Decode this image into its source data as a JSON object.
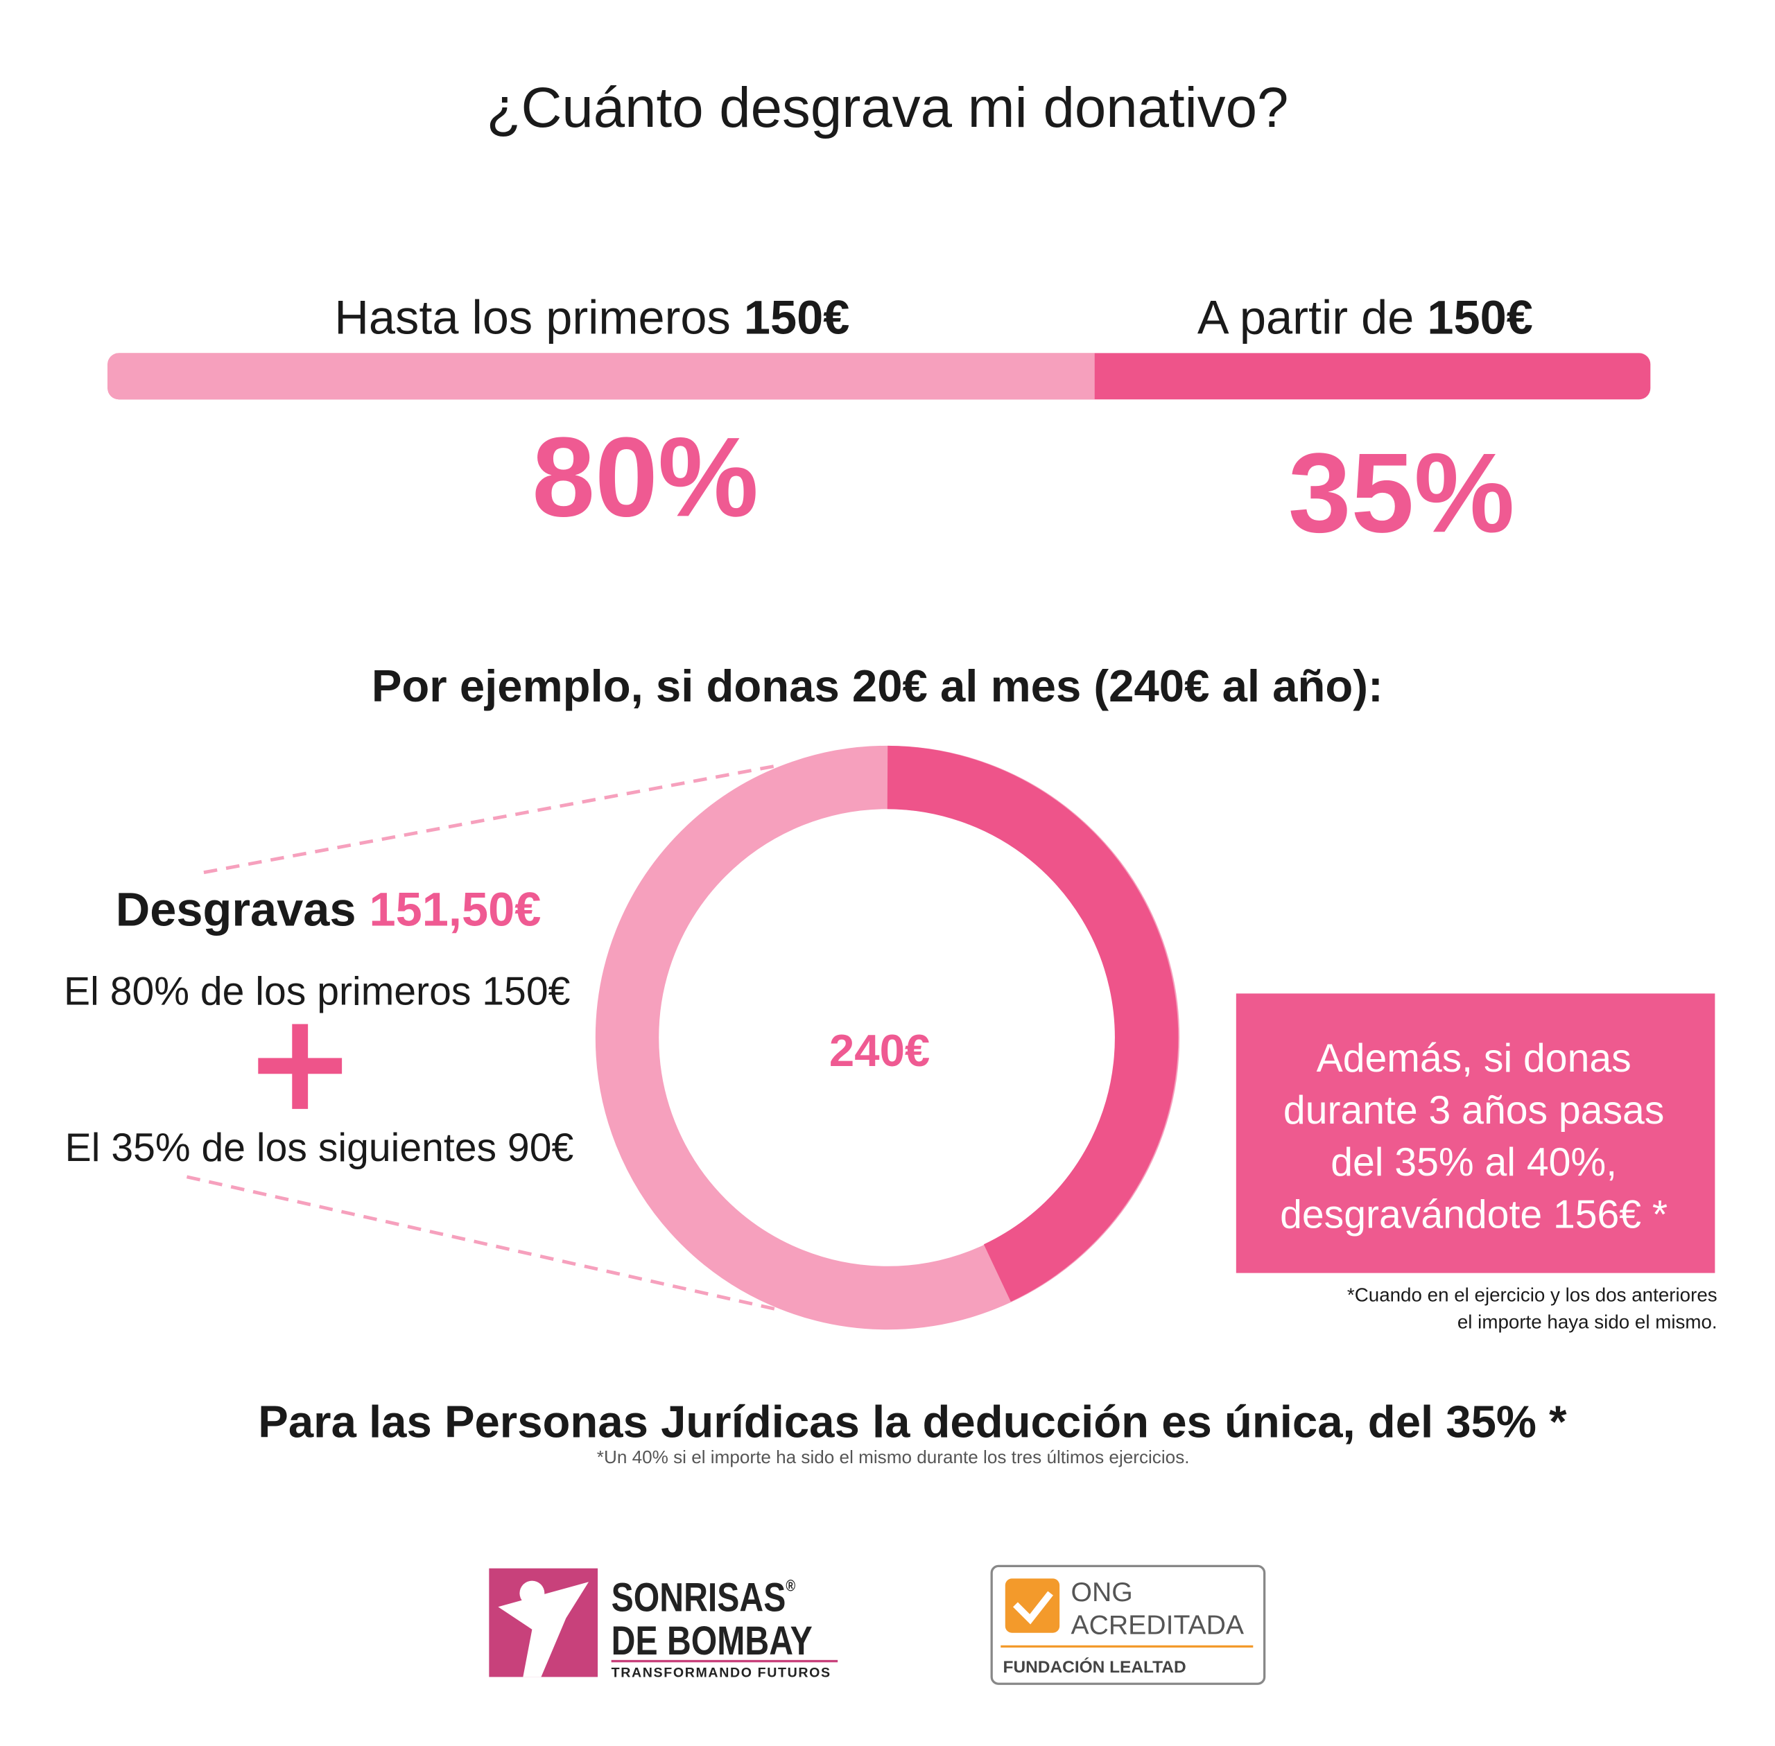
{
  "title": "¿Cuánto desgrava mi donativo?",
  "tiers": [
    {
      "label": "Hasta los primeros",
      "amount": "150€",
      "rate": "80%"
    },
    {
      "label": "A partir de",
      "amount": "150€",
      "rate": "35%"
    }
  ],
  "example": {
    "heading": "Por ejemplo, si donas 20€ al mes (240€ al año):",
    "total": "240€",
    "deduction_label": "Desgravas",
    "deduction_amount": "151,50€",
    "line1": "El 80% de los primeros 150€",
    "line2": "El 35% de los siguientes 90€"
  },
  "note": {
    "lines": [
      "Además, si donas",
      "durante 3 años pasas",
      "del 35% al 40%,",
      "desgravándote 156€ *"
    ],
    "footnote": [
      "*Cuando en el ejercicio y los dos anteriores",
      "el importe haya sido el mismo."
    ]
  },
  "companies": {
    "heading": "Para las Personas Jurídicas la deducción es única, del 35% *",
    "footnote": "*Un 40% si el importe ha sido el mismo durante los tres últimos ejercicios."
  },
  "logos": {
    "sonrisas": {
      "line1": "SONRISAS",
      "reg": "®",
      "line2": "DE BOMBAY",
      "tagline": "TRANSFORMANDO FUTUROS"
    },
    "ong": {
      "line1": "ONG",
      "line2": "ACREDITADA",
      "footer": "FUNDACIÓN LEALTAD"
    }
  }
}
